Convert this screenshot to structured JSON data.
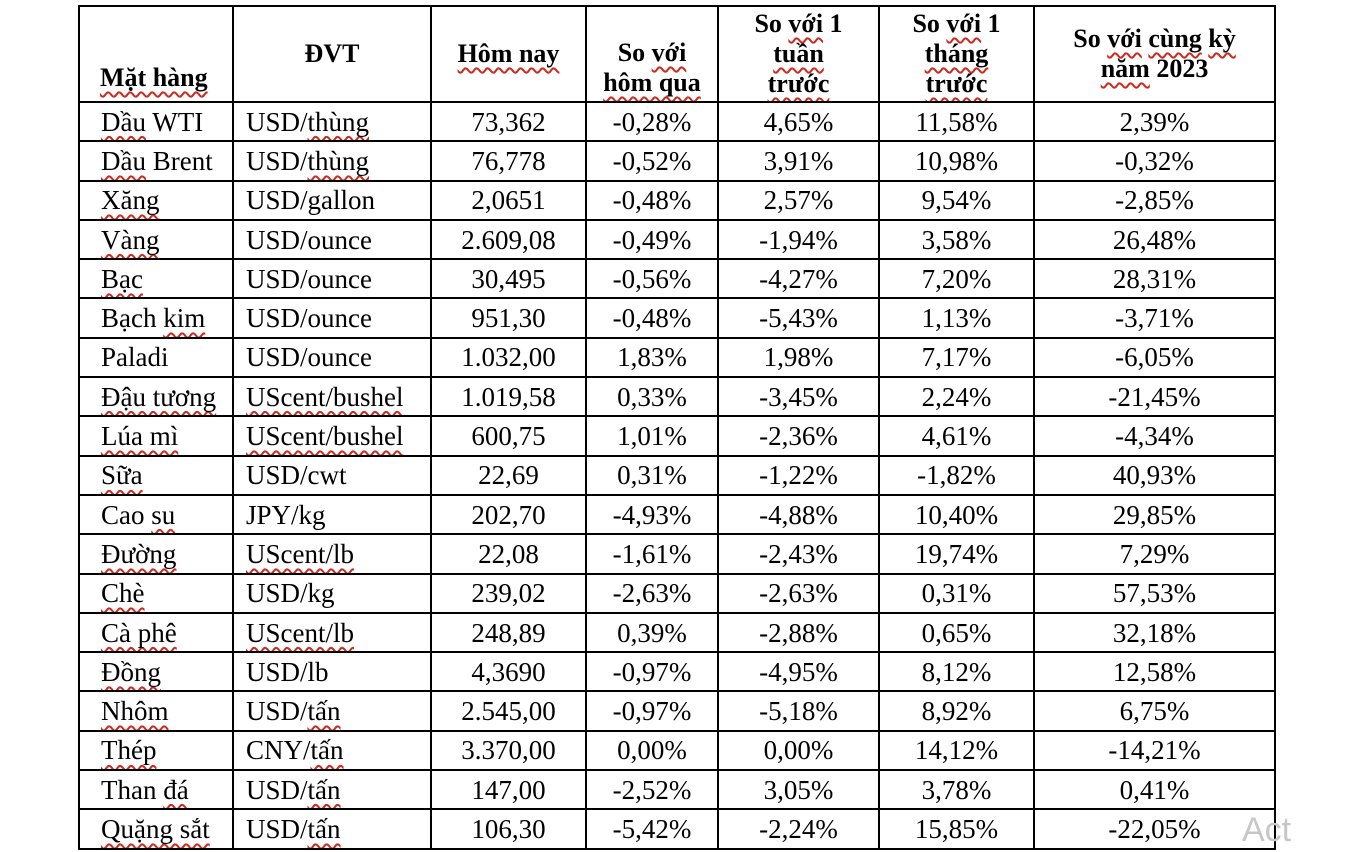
{
  "page": {
    "background": "#ffffff",
    "text_color": "#000000",
    "border_color": "#000000"
  },
  "watermark": {
    "text": "Act",
    "color": "#c7c7c7"
  },
  "table": {
    "spellcheck_color": "#cc2a1e",
    "columns": [
      {
        "id": "item",
        "lines": [
          "Mặt hàng"
        ],
        "sq": [
          "Mặt hàng"
        ]
      },
      {
        "id": "unit",
        "lines": [
          "ĐVT"
        ],
        "sq": []
      },
      {
        "id": "today",
        "lines": [
          "Hôm nay"
        ],
        "sq": [
          "Hôm nay"
        ]
      },
      {
        "id": "vs_yesterday",
        "lines": [
          "So với",
          "hôm qua"
        ],
        "sq": [
          "với",
          "hôm qua"
        ]
      },
      {
        "id": "vs_week",
        "lines": [
          "So với 1",
          "tuần",
          "trước"
        ],
        "sq": [
          "với",
          "tuần",
          "trước"
        ]
      },
      {
        "id": "vs_month",
        "lines": [
          "So với 1",
          "tháng",
          "trước"
        ],
        "sq": [
          "với",
          "tháng",
          "trước"
        ]
      },
      {
        "id": "vs_2023",
        "lines": [
          "So với cùng kỳ",
          "năm 2023"
        ],
        "sq": [
          "với",
          "cùng",
          "kỳ",
          "năm"
        ]
      }
    ],
    "rows": [
      {
        "item": "Dầu WTI",
        "item_sq": [
          "Dầu"
        ],
        "unit": "USD/thùng",
        "unit_sq": [
          "thùng"
        ],
        "today": "73,362",
        "vs_yesterday": "-0,28%",
        "vs_week": "4,65%",
        "vs_month": "11,58%",
        "vs_2023": "2,39%"
      },
      {
        "item": "Dầu Brent",
        "item_sq": [
          "Dầu"
        ],
        "unit": "USD/thùng",
        "unit_sq": [
          "thùng"
        ],
        "today": "76,778",
        "vs_yesterday": "-0,52%",
        "vs_week": "3,91%",
        "vs_month": "10,98%",
        "vs_2023": "-0,32%"
      },
      {
        "item": "Xăng",
        "item_sq": [
          "Xăng"
        ],
        "unit": "USD/gallon",
        "unit_sq": [],
        "today": "2,0651",
        "vs_yesterday": "-0,48%",
        "vs_week": "2,57%",
        "vs_month": "9,54%",
        "vs_2023": "-2,85%"
      },
      {
        "item": "Vàng",
        "item_sq": [
          "Vàng"
        ],
        "unit": "USD/ounce",
        "unit_sq": [],
        "today": "2.609,08",
        "vs_yesterday": "-0,49%",
        "vs_week": "-1,94%",
        "vs_month": "3,58%",
        "vs_2023": "26,48%"
      },
      {
        "item": "Bạc",
        "item_sq": [
          "Bạc"
        ],
        "unit": "USD/ounce",
        "unit_sq": [],
        "today": "30,495",
        "vs_yesterday": "-0,56%",
        "vs_week": "-4,27%",
        "vs_month": "7,20%",
        "vs_2023": "28,31%"
      },
      {
        "item": "Bạch kim",
        "item_sq": [
          "kim"
        ],
        "unit": "USD/ounce",
        "unit_sq": [],
        "today": "951,30",
        "vs_yesterday": "-0,48%",
        "vs_week": "-5,43%",
        "vs_month": "1,13%",
        "vs_2023": "-3,71%"
      },
      {
        "item": "Paladi",
        "item_sq": [],
        "unit": "USD/ounce",
        "unit_sq": [],
        "today": "1.032,00",
        "vs_yesterday": "1,83%",
        "vs_week": "1,98%",
        "vs_month": "7,17%",
        "vs_2023": "-6,05%"
      },
      {
        "item": "Đậu tương",
        "item_sq": [
          "Đậu tương"
        ],
        "unit": "UScent/bushel",
        "unit_sq": [
          "UScent/bushel"
        ],
        "today": "1.019,58",
        "vs_yesterday": "0,33%",
        "vs_week": "-3,45%",
        "vs_month": "2,24%",
        "vs_2023": "-21,45%"
      },
      {
        "item": "Lúa mì",
        "item_sq": [
          "Lúa mì"
        ],
        "unit": "UScent/bushel",
        "unit_sq": [
          "UScent/bushel"
        ],
        "today": "600,75",
        "vs_yesterday": "1,01%",
        "vs_week": "-2,36%",
        "vs_month": "4,61%",
        "vs_2023": "-4,34%"
      },
      {
        "item": "Sữa",
        "item_sq": [
          "Sữa"
        ],
        "unit": "USD/cwt",
        "unit_sq": [],
        "today": "22,69",
        "vs_yesterday": "0,31%",
        "vs_week": "-1,22%",
        "vs_month": "-1,82%",
        "vs_2023": "40,93%"
      },
      {
        "item": "Cao su",
        "item_sq": [
          "su"
        ],
        "unit": "JPY/kg",
        "unit_sq": [],
        "today": "202,70",
        "vs_yesterday": "-4,93%",
        "vs_week": "-4,88%",
        "vs_month": "10,40%",
        "vs_2023": "29,85%"
      },
      {
        "item": "Đường",
        "item_sq": [
          "Đường"
        ],
        "unit": "UScent/lb",
        "unit_sq": [
          "UScent/lb"
        ],
        "today": "22,08",
        "vs_yesterday": "-1,61%",
        "vs_week": "-2,43%",
        "vs_month": "19,74%",
        "vs_2023": "7,29%"
      },
      {
        "item": "Chè",
        "item_sq": [
          "Chè"
        ],
        "unit": "USD/kg",
        "unit_sq": [],
        "today": "239,02",
        "vs_yesterday": "-2,63%",
        "vs_week": "-2,63%",
        "vs_month": "0,31%",
        "vs_2023": "57,53%"
      },
      {
        "item": "Cà phê",
        "item_sq": [
          "Cà phê"
        ],
        "unit": "UScent/lb",
        "unit_sq": [
          "UScent/lb"
        ],
        "today": "248,89",
        "vs_yesterday": "0,39%",
        "vs_week": "-2,88%",
        "vs_month": "0,65%",
        "vs_2023": "32,18%"
      },
      {
        "item": "Đồng",
        "item_sq": [
          "Đồng"
        ],
        "unit": "USD/lb",
        "unit_sq": [],
        "today": "4,3690",
        "vs_yesterday": "-0,97%",
        "vs_week": "-4,95%",
        "vs_month": "8,12%",
        "vs_2023": "12,58%"
      },
      {
        "item": "Nhôm",
        "item_sq": [
          "Nhôm"
        ],
        "unit": "USD/tấn",
        "unit_sq": [
          "tấn"
        ],
        "today": "2.545,00",
        "vs_yesterday": "-0,97%",
        "vs_week": "-5,18%",
        "vs_month": "8,92%",
        "vs_2023": "6,75%"
      },
      {
        "item": "Thép",
        "item_sq": [
          "Thép"
        ],
        "unit": "CNY/tấn",
        "unit_sq": [
          "tấn"
        ],
        "today": "3.370,00",
        "vs_yesterday": "0,00%",
        "vs_week": "0,00%",
        "vs_month": "14,12%",
        "vs_2023": "-14,21%"
      },
      {
        "item": "Than đá",
        "item_sq": [
          "đá"
        ],
        "unit": "USD/tấn",
        "unit_sq": [
          "tấn"
        ],
        "today": "147,00",
        "vs_yesterday": "-2,52%",
        "vs_week": "3,05%",
        "vs_month": "3,78%",
        "vs_2023": "0,41%"
      },
      {
        "item": "Quặng sắt",
        "item_sq": [
          "Quặng sắt"
        ],
        "unit": "USD/tấn",
        "unit_sq": [
          "tấn"
        ],
        "today": "106,30",
        "vs_yesterday": "-5,42%",
        "vs_week": "-2,24%",
        "vs_month": "15,85%",
        "vs_2023": "-22,05%"
      }
    ]
  }
}
